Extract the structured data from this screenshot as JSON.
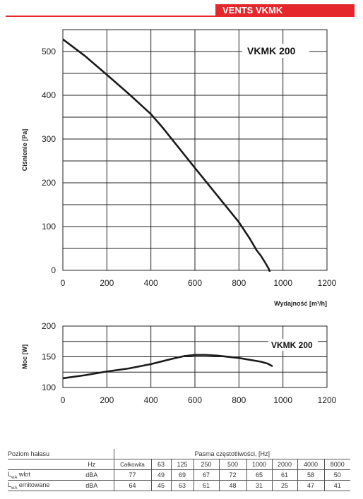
{
  "header": {
    "title": "VENTS VKMK"
  },
  "chart_data": [
    {
      "type": "line",
      "title": "VKMK 200",
      "ylabel": "Ciśnienie [Pa]",
      "xlabel": "Wydajność [m³/h]",
      "xlim": [
        0,
        1200
      ],
      "ylim": [
        0,
        550
      ],
      "xticks": [
        0,
        200,
        400,
        600,
        800,
        1000,
        1200
      ],
      "yticks": [
        0,
        100,
        200,
        300,
        400,
        500
      ],
      "grid": true,
      "series": [
        {
          "x": [
            0,
            100,
            200,
            300,
            400,
            450,
            500,
            600,
            700,
            800,
            850,
            880,
            900,
            920,
            935,
            945,
            950
          ],
          "y": [
            528,
            490,
            447,
            403,
            357,
            328,
            297,
            234,
            172,
            110,
            72,
            46,
            33,
            17,
            4,
            -10,
            -20
          ]
        }
      ],
      "line_color": "#1a1a1a"
    },
    {
      "type": "line",
      "title": "VKMK 200",
      "ylabel": "Moc [W]",
      "xlim": [
        0,
        1200
      ],
      "ylim": [
        100,
        200
      ],
      "xticks": [
        0,
        200,
        400,
        600,
        800,
        1000,
        1200
      ],
      "yticks": [
        100,
        150,
        200
      ],
      "grid": true,
      "series": [
        {
          "x": [
            0,
            100,
            200,
            300,
            400,
            500,
            550,
            600,
            650,
            700,
            800,
            900,
            930,
            950
          ],
          "y": [
            115,
            120,
            126,
            131,
            138,
            147,
            151,
            153,
            153,
            152,
            148,
            142,
            139,
            135
          ]
        }
      ],
      "line_color": "#1a1a1a"
    }
  ],
  "noise_table": {
    "title": "Poziom hałasu",
    "bands_title": "Pasma częstotliwości, [Hz]",
    "unit_hz": "Hz",
    "columns": [
      "Całkowita",
      "63",
      "125",
      "250",
      "500",
      "1000",
      "2000",
      "4000",
      "8000"
    ],
    "rows": [
      {
        "label_main": "L",
        "label_sub": "wA",
        "label_rest": " wlot",
        "unit": "dBA",
        "values": [
          "77",
          "49",
          "69",
          "67",
          "72",
          "65",
          "61",
          "58",
          "50"
        ]
      },
      {
        "label_main": "L",
        "label_sub": "wA",
        "label_rest": " emitowane",
        "unit": "dBA",
        "values": [
          "64",
          "45",
          "63",
          "61",
          "48",
          "31",
          "25",
          "47",
          "41"
        ]
      }
    ]
  }
}
